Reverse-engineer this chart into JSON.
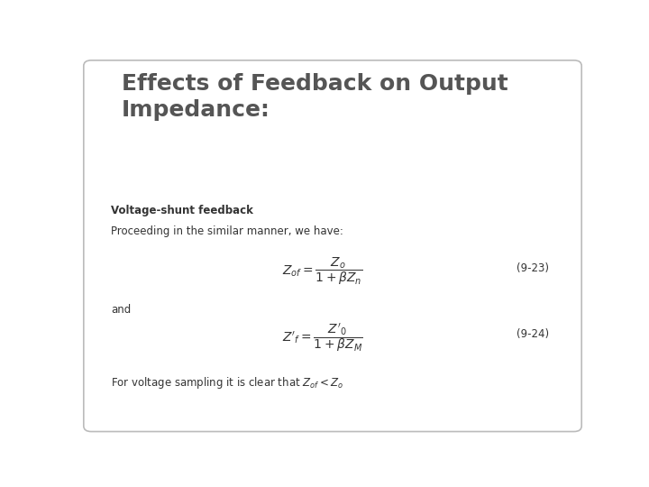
{
  "title": "Effects of Feedback on Output\nImpedance:",
  "title_fontsize": 18,
  "title_color": "#555555",
  "bg_color": "#ffffff",
  "border_color": "#bbbbbb",
  "subtitle_bold": "Voltage-shunt feedback",
  "subtitle_normal": "Proceeding in the similar manner, we have:",
  "eq1_number": "(9-23)",
  "eq2_number": "(9-24)",
  "and_text": "and",
  "conclusion": "For voltage sampling it is clear that $Z_{of} < Z_o$",
  "text_color": "#333333",
  "eq_fontsize": 10,
  "body_fontsize": 8.5,
  "number_fontsize": 8.5
}
